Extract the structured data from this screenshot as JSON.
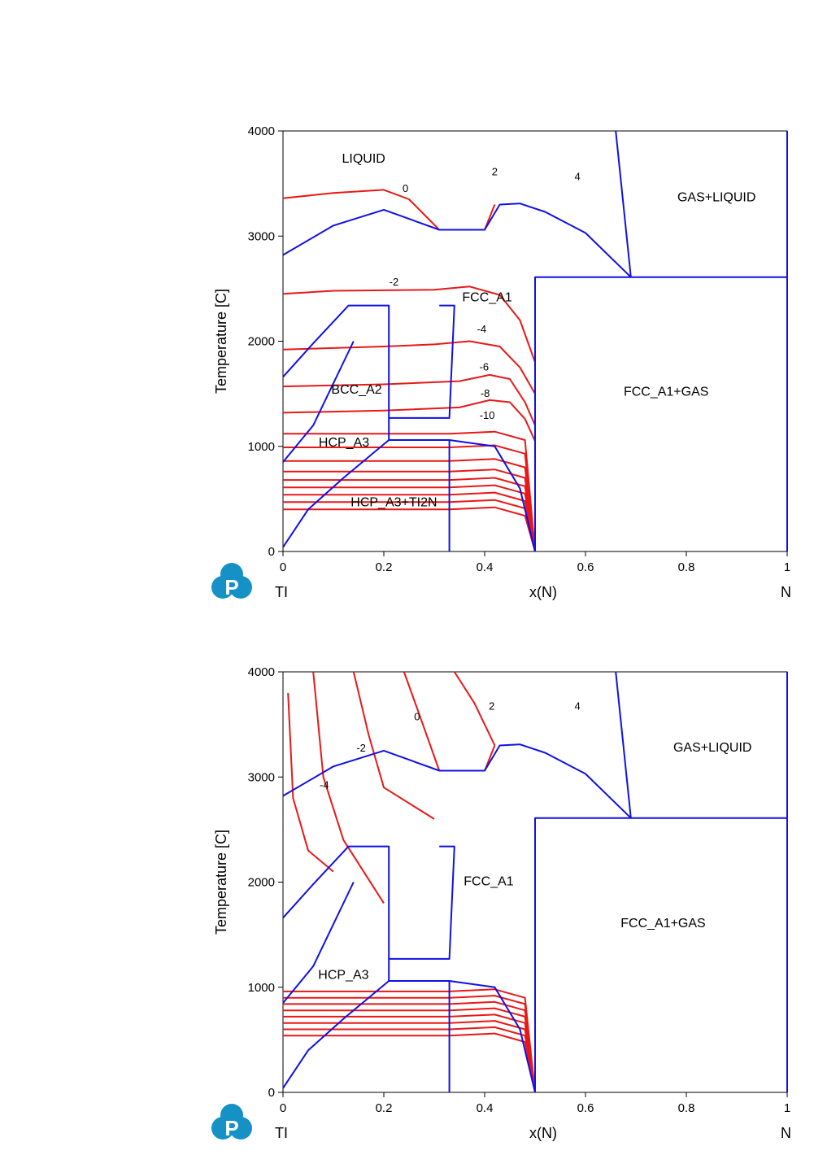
{
  "chart_data": [
    {
      "type": "line",
      "ylabel": "Temperature [C]",
      "xlabel": "x(N)",
      "x_left_element": "TI",
      "x_right_element": "N",
      "xlim": [
        0,
        1
      ],
      "ylim": [
        0,
        4000
      ],
      "xticks": [
        "0",
        "0.2",
        "0.4",
        "0.6",
        "0.8",
        "1"
      ],
      "yticks": [
        "0",
        "1000",
        "2000",
        "3000",
        "4000"
      ],
      "region_labels": [
        {
          "text": "LIQUID",
          "x": 0.16,
          "y": 3700
        },
        {
          "text": "GAS+LIQUID",
          "x": 0.86,
          "y": 3330
        },
        {
          "text": "FCC_A1",
          "x": 0.405,
          "y": 2380
        },
        {
          "text": "BCC_A2",
          "x": 0.146,
          "y": 1500
        },
        {
          "text": "FCC_A1+GAS",
          "x": 0.76,
          "y": 1480
        },
        {
          "text": "HCP_A3",
          "x": 0.121,
          "y": 1000
        },
        {
          "text": "HCP_A3+TI2N",
          "x": 0.22,
          "y": 430
        }
      ],
      "contour_labels": [
        {
          "text": "0",
          "x": 0.243,
          "y": 3420
        },
        {
          "text": "2",
          "x": 0.42,
          "y": 3580
        },
        {
          "text": "4",
          "x": 0.584,
          "y": 3530
        },
        {
          "text": "-2",
          "x": 0.22,
          "y": 2530
        },
        {
          "text": "-4",
          "x": 0.394,
          "y": 2080
        },
        {
          "text": "-6",
          "x": 0.399,
          "y": 1720
        },
        {
          "text": "-8",
          "x": 0.401,
          "y": 1470
        },
        {
          "text": "-10",
          "x": 0.405,
          "y": 1260
        }
      ]
    },
    {
      "type": "line",
      "ylabel": "Temperature [C]",
      "xlabel": "x(N)",
      "x_left_element": "TI",
      "x_right_element": "N",
      "xlim": [
        0,
        1
      ],
      "ylim": [
        0,
        4000
      ],
      "xticks": [
        "0",
        "0.2",
        "0.4",
        "0.6",
        "0.8",
        "1"
      ],
      "yticks": [
        "0",
        "1000",
        "2000",
        "3000",
        "4000"
      ],
      "region_labels": [
        {
          "text": "GAS+LIQUID",
          "x": 0.852,
          "y": 3240
        },
        {
          "text": "FCC_A1",
          "x": 0.408,
          "y": 1970
        },
        {
          "text": "FCC_A1+GAS",
          "x": 0.754,
          "y": 1570
        },
        {
          "text": "HCP_A3",
          "x": 0.12,
          "y": 1080
        }
      ],
      "contour_labels": [
        {
          "text": "0",
          "x": 0.266,
          "y": 3540
        },
        {
          "text": "2",
          "x": 0.414,
          "y": 3640
        },
        {
          "text": "4",
          "x": 0.584,
          "y": 3640
        },
        {
          "text": "-2",
          "x": 0.155,
          "y": 3240
        },
        {
          "text": "-4",
          "x": 0.082,
          "y": 2890
        }
      ]
    }
  ]
}
